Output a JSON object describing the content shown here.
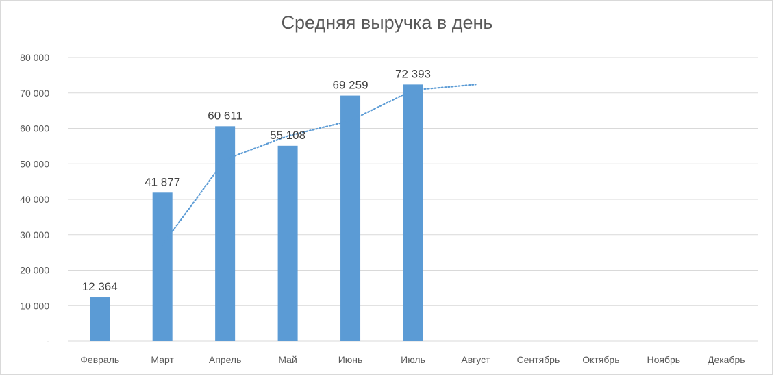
{
  "chart_data": {
    "type": "bar",
    "title": "Средняя выручка в день",
    "xlabel": "",
    "ylabel": "",
    "categories": [
      "Февраль",
      "Март",
      "Апрель",
      "Май",
      "Июнь",
      "Июль",
      "Август",
      "Сентябрь",
      "Октябрь",
      "Ноябрь",
      "Декабрь"
    ],
    "series": [
      {
        "values": [
          12364,
          41877,
          60611,
          55108,
          69259,
          72393,
          null,
          null,
          null,
          null,
          null
        ],
        "data_labels": [
          "12 364",
          "41 877",
          "60 611",
          "55 108",
          "69 259",
          "72 393",
          "",
          "",
          "",
          "",
          ""
        ],
        "color": "#5b9bd5"
      }
    ],
    "trendline": {
      "type": "moving_average",
      "period": 2,
      "style": "dotted",
      "color": "#5b9bd5",
      "x_start": "Март",
      "x_end": "Август"
    },
    "ylim": [
      0,
      80000
    ],
    "yticks": [
      0,
      10000,
      20000,
      30000,
      40000,
      50000,
      60000,
      70000,
      80000
    ],
    "ytick_labels": [
      "-",
      "10 000",
      "20 000",
      "30 000",
      "40 000",
      "50 000",
      "60 000",
      "70 000",
      "80 000"
    ],
    "grid": true,
    "legend": "none"
  }
}
